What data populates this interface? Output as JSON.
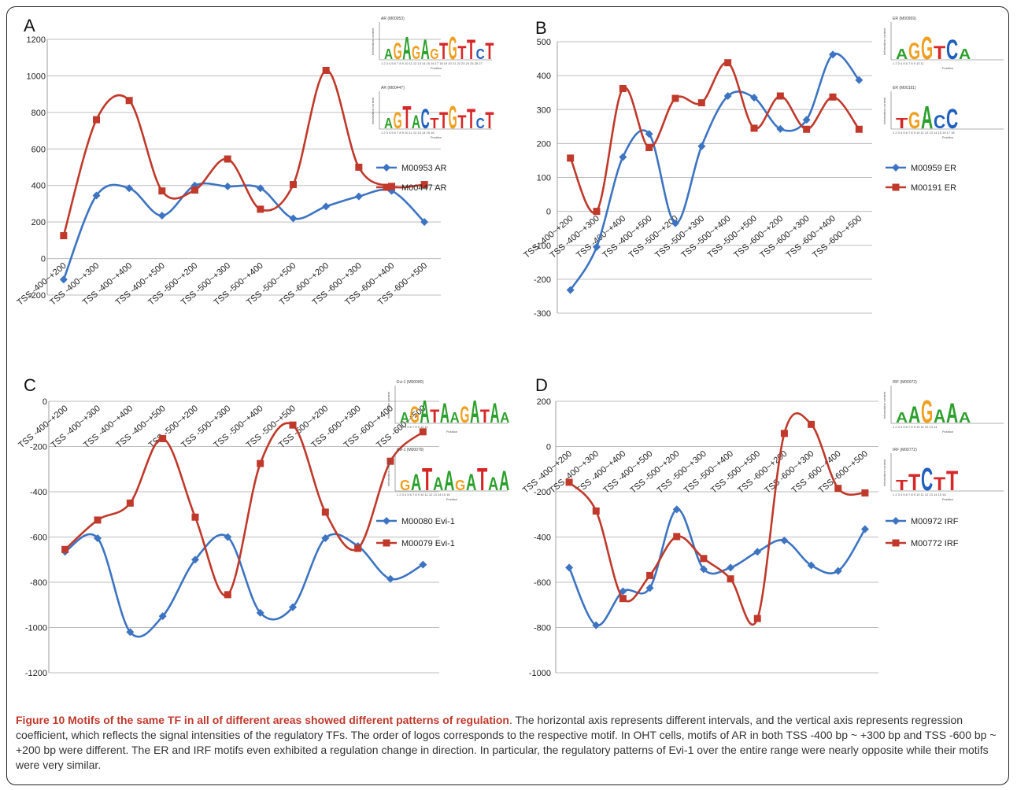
{
  "colors": {
    "blue": "#3d74c2",
    "red": "#c0392b"
  },
  "caption": {
    "figure_label": "Figure 10",
    "headline": "Motifs of the same TF in all of different areas showed different patterns of regulation",
    "body": ". The horizontal axis represents different intervals, and the vertical axis represents regression coefficient, which reflects the signal intensities of the regulatory TFs. The order of logos corresponds to the respective motif. In OHT cells, motifs of AR in both TSS -400 bp ~ +300 bp and TSS -600 bp ~ +200 bp were different. The ER and IRF motifs even exhibited a regulation change in direction. In particular, the regulatory patterns of Evi-1 over the entire range were nearly opposite while their motifs were very similar."
  },
  "logo_axis": {
    "ylabel": "Information content",
    "xlabel": "Position"
  },
  "chart_data": [
    {
      "panel": "A",
      "type": "line",
      "smooth": true,
      "categories": [
        "TSS -400~+200",
        "TSS -400~+300",
        "TSS -400~+400",
        "TSS -400~+500",
        "TSS -500~+200",
        "TSS -500~+300",
        "TSS -500~+400",
        "TSS -500~+500",
        "TSS -600~+200",
        "TSS -600~+300",
        "TSS -600~+400",
        "TSS -600~+500"
      ],
      "ylim": [
        -200,
        1200
      ],
      "yticks": [
        -200,
        0,
        200,
        400,
        600,
        800,
        1000,
        1200
      ],
      "series": [
        {
          "name": "M00953 AR",
          "color": "#3d74c2",
          "marker": "diamond",
          "values": [
            -115,
            345,
            385,
            235,
            400,
            395,
            385,
            220,
            285,
            340,
            370,
            200
          ]
        },
        {
          "name": "M00447 AR",
          "color": "#c0392b",
          "marker": "square",
          "values": [
            125,
            760,
            865,
            370,
            375,
            545,
            270,
            405,
            1030,
            500,
            395,
            405
          ]
        }
      ],
      "logos": [
        {
          "title": "AR (M00953)",
          "sequence": "AGAGAGTGTTCT",
          "ticks": "1 2 3 4 5 6 7 8 9 10 11 12 13 14 15 16 17 18 19 20 21 22 23 24 25 26 27"
        },
        {
          "title": "AR (M00447)",
          "sequence": "AGTACTTGTTCT",
          "ticks": "1 2 3 4 5 6 7 8 9 10 11 12 13 14 15 16"
        }
      ]
    },
    {
      "panel": "B",
      "type": "line",
      "smooth": true,
      "categories": [
        "TSS -400~+200",
        "TSS -400~+300",
        "TSS -400~+400",
        "TSS -400~+500",
        "TSS -500~+200",
        "TSS -500~+300",
        "TSS -500~+400",
        "TSS -500~+500",
        "TSS -600~+200",
        "TSS -600~+300",
        "TSS -600~+400",
        "TSS -600~+500"
      ],
      "ylim": [
        -300,
        500
      ],
      "yticks": [
        -300,
        -200,
        -100,
        0,
        100,
        200,
        300,
        400,
        500
      ],
      "series": [
        {
          "name": "M00959 ER",
          "color": "#3d74c2",
          "marker": "diamond",
          "values": [
            -232,
            -105,
            160,
            228,
            -35,
            192,
            340,
            335,
            243,
            270,
            462,
            387
          ]
        },
        {
          "name": "M00191 ER",
          "color": "#c0392b",
          "marker": "square",
          "values": [
            157,
            0,
            362,
            188,
            333,
            320,
            438,
            245,
            340,
            242,
            337,
            242
          ]
        }
      ],
      "logos": [
        {
          "title": "ER (M00959)",
          "sequence": "AGGTCA",
          "ticks": "1 2 3 4 5 6 7 8 9 10 11"
        },
        {
          "title": "ER (M00191)",
          "sequence": "TGACC",
          "ticks": "1 2 3 4 5 6 7 8 9 10 11 12 13 14 15 16 17 18"
        }
      ]
    },
    {
      "panel": "C",
      "type": "line",
      "smooth": true,
      "categories": [
        "TSS -400~+200",
        "TSS -400~+300",
        "TSS -400~+400",
        "TSS -400~+500",
        "TSS -500~+200",
        "TSS -500~+300",
        "TSS -500~+400",
        "TSS -500~+500",
        "TSS -600~+200",
        "TSS -600~+300",
        "TSS -600~+400",
        "TSS -600~+500"
      ],
      "ylim": [
        -1200,
        0
      ],
      "yticks": [
        -1200,
        -1000,
        -800,
        -600,
        -400,
        -200,
        0
      ],
      "series": [
        {
          "name": "M00080 Evi-1",
          "color": "#3d74c2",
          "marker": "diamond",
          "values": [
            -665,
            -605,
            -1020,
            -950,
            -700,
            -600,
            -935,
            -910,
            -605,
            -640,
            -785,
            -722
          ]
        },
        {
          "name": "M00079 Evi-1",
          "color": "#c0392b",
          "marker": "square",
          "values": [
            -655,
            -525,
            -450,
            -165,
            -512,
            -855,
            -275,
            -105,
            -490,
            -650,
            -265,
            -135
          ]
        }
      ],
      "logos": [
        {
          "title": "Evi-1 (M00080)",
          "sequence": "AGATAAGATAA",
          "ticks": "1 2 3 4 5 6 7 8 9 10 11"
        },
        {
          "title": "Evi-1 (M00079)",
          "sequence": "GATAAGATAA",
          "ticks": "1 2 3 4 5 6 7 8 9 10 11 12 13 14 15 16"
        }
      ]
    },
    {
      "panel": "D",
      "type": "line",
      "smooth": true,
      "categories": [
        "TSS -400~+200",
        "TSS -400~+300",
        "TSS -400~+400",
        "TSS -400~+500",
        "TSS -500~+200",
        "TSS -500~+300",
        "TSS -500~+400",
        "TSS -500~+500",
        "TSS -600~+200",
        "TSS -600~+300",
        "TSS -600~+400",
        "TSS -600~+500"
      ],
      "ylim": [
        -1000,
        200
      ],
      "yticks": [
        -1000,
        -800,
        -600,
        -400,
        -200,
        0,
        200
      ],
      "series": [
        {
          "name": "M00972 IRF",
          "color": "#3d74c2",
          "marker": "diamond",
          "values": [
            -535,
            -790,
            -640,
            -625,
            -278,
            -542,
            -535,
            -465,
            -415,
            -525,
            -550,
            -365
          ]
        },
        {
          "name": "M00772 IRF",
          "color": "#c0392b",
          "marker": "square",
          "values": [
            -158,
            -285,
            -672,
            -570,
            -398,
            -495,
            -585,
            -760,
            58,
            98,
            -185,
            -205
          ]
        }
      ],
      "logos": [
        {
          "title": "IRF (M00972)",
          "sequence": "AAGAAA",
          "ticks": "1 2 3 4 5 6 7 8 9 10 11 12 13 14"
        },
        {
          "title": "IRF (M00772)",
          "sequence": "TTCTT",
          "ticks": "1 2 3 4 5 6 7 8 9 10 11 12 13 14 15 16"
        }
      ]
    }
  ]
}
